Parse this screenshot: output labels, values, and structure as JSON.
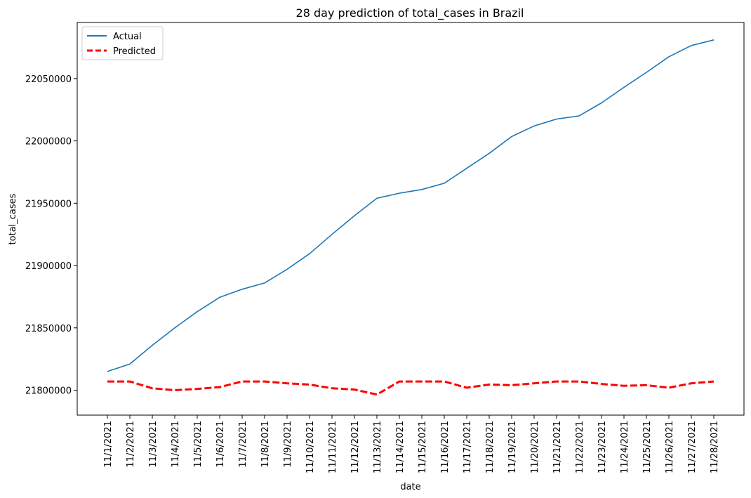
{
  "chart_data": {
    "type": "line",
    "title": "28 day prediction of total_cases in Brazil",
    "xlabel": "date",
    "ylabel": "total_cases",
    "categories": [
      "11/1/2021",
      "11/2/2021",
      "11/3/2021",
      "11/4/2021",
      "11/5/2021",
      "11/6/2021",
      "11/7/2021",
      "11/8/2021",
      "11/9/2021",
      "11/10/2021",
      "11/11/2021",
      "11/12/2021",
      "11/13/2021",
      "11/14/2021",
      "11/15/2021",
      "11/16/2021",
      "11/17/2021",
      "11/18/2021",
      "11/19/2021",
      "11/20/2021",
      "11/21/2021",
      "11/22/2021",
      "11/23/2021",
      "11/24/2021",
      "11/25/2021",
      "11/26/2021",
      "11/27/2021",
      "11/28/2021"
    ],
    "ylim": [
      21780000,
      22095000
    ],
    "yticks": [
      21800000,
      21850000,
      21900000,
      21950000,
      22000000,
      22050000
    ],
    "grid": false,
    "legend_position": "top-left",
    "series": [
      {
        "name": "Actual",
        "color": "#1f77b4",
        "style": "solid",
        "values": [
          21815000,
          21821000,
          21836000,
          21850000,
          21863000,
          21874500,
          21881000,
          21886000,
          21897000,
          21909500,
          21925000,
          21940000,
          21954000,
          21958000,
          21961000,
          21966000,
          21978000,
          21990000,
          22003500,
          22012000,
          22017500,
          22020000,
          22030500,
          22043000,
          22055000,
          22067500,
          22076500,
          22081000
        ]
      },
      {
        "name": "Predicted",
        "color": "#ff0000",
        "style": "dashed",
        "values": [
          21807000,
          21807000,
          21801500,
          21800000,
          21801000,
          21802500,
          21807000,
          21807000,
          21805500,
          21804500,
          21801500,
          21800500,
          21796500,
          21807000,
          21807000,
          21807000,
          21802000,
          21804500,
          21804000,
          21805500,
          21807000,
          21807000,
          21805000,
          21803500,
          21804000,
          21802000,
          21805500,
          21807000
        ]
      }
    ]
  }
}
